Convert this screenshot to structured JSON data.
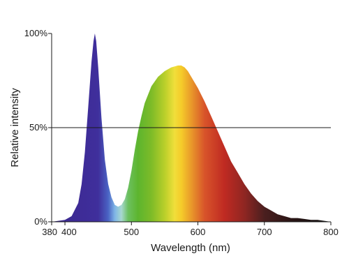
{
  "chart_data": {
    "type": "area",
    "title": "",
    "xlabel": "Wavelength (nm)",
    "ylabel": "Relative intensity",
    "xlim": [
      380,
      800
    ],
    "ylim": [
      0,
      100
    ],
    "x_ticks": [
      {
        "value": 380,
        "label": "380"
      },
      {
        "value": 400,
        "label": "400"
      },
      {
        "value": 500,
        "label": "500"
      },
      {
        "value": 600,
        "label": "600"
      },
      {
        "value": 700,
        "label": "700"
      },
      {
        "value": 800,
        "label": "800"
      }
    ],
    "y_ticks": [
      {
        "value": 0,
        "label": "0%"
      },
      {
        "value": 50,
        "label": "50%"
      },
      {
        "value": 100,
        "label": "100%"
      }
    ],
    "reference_line": {
      "y": 50
    },
    "grid": false,
    "legend": "none",
    "fill": "spectral gradient by wavelength",
    "series": [
      {
        "x": [
          380,
          400,
          410,
          420,
          425,
          430,
          435,
          440,
          443,
          445,
          447,
          450,
          455,
          460,
          465,
          470,
          475,
          480,
          485,
          490,
          495,
          500,
          505,
          510,
          515,
          520,
          530,
          540,
          550,
          560,
          570,
          575,
          580,
          585,
          590,
          600,
          610,
          620,
          630,
          640,
          650,
          660,
          670,
          680,
          690,
          700,
          710,
          720,
          730,
          740,
          750,
          760,
          770,
          780,
          790,
          800
        ],
        "y": [
          0,
          1,
          3,
          10,
          20,
          37,
          61,
          85,
          96,
          100,
          96,
          82,
          55,
          33,
          20,
          13,
          9,
          8,
          9,
          12,
          18,
          27,
          38,
          48,
          56,
          63,
          72,
          77,
          80,
          82,
          83,
          83,
          82,
          80,
          77,
          71,
          64,
          56,
          48,
          40,
          32,
          26,
          20,
          15,
          11,
          8,
          6,
          4,
          3,
          2,
          2,
          1.5,
          1,
          1,
          0.5,
          0
        ]
      }
    ]
  }
}
